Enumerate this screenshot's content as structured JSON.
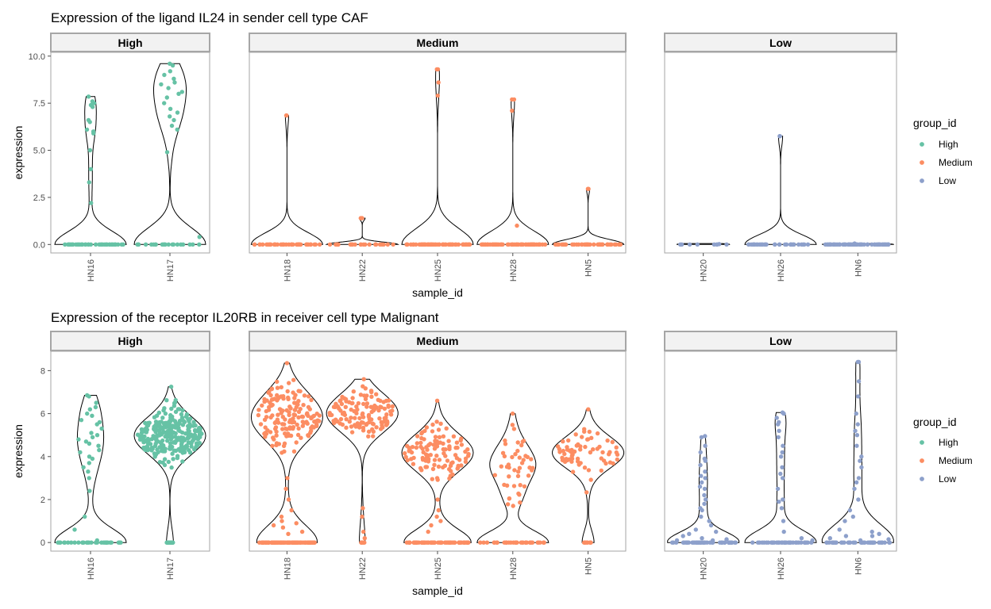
{
  "colors": {
    "High": "#66c2a5",
    "Medium": "#fc8d62",
    "Low": "#8da0cb"
  },
  "chart_data": [
    {
      "type": "violin",
      "title": "Expression of the ligand IL24 in sender cell type CAF",
      "xlabel": "sample_id",
      "ylabel": "expression",
      "ylim": [
        -0.45,
        10.2
      ],
      "yticks": [
        "0.0",
        "2.5",
        "5.0",
        "7.5",
        "10.0"
      ],
      "ytick_values": [
        0,
        2.5,
        5,
        7.5,
        10
      ],
      "facets": [
        {
          "strip": "High",
          "group": "High",
          "samples": [
            {
              "id": "HN16",
              "n_zero": 40,
              "max": 7.85,
              "upper": [
                6.5,
                7.5,
                6.0,
                6.6,
                7.4,
                5.9,
                7.6,
                6.1,
                4.0,
                3.3,
                2.2,
                5.0,
                7.3
              ]
            },
            {
              "id": "HN17",
              "n_zero": 22,
              "max": 9.6,
              "upper": [
                8.3,
                9.2,
                8.6,
                7.5,
                6.8,
                6.1,
                8.5,
                7.2,
                8.1,
                6.3,
                4.9,
                8.8,
                9.5,
                7.8,
                7.0,
                6.6,
                9.0,
                8.0,
                0.4
              ]
            }
          ]
        },
        {
          "strip": "Medium",
          "group": "Medium",
          "samples": [
            {
              "id": "HN18",
              "n_zero": 45,
              "max": 6.85,
              "upper": [
                6.85
              ]
            },
            {
              "id": "HN22",
              "n_zero": 25,
              "max": 1.4,
              "upper": [
                1.4
              ]
            },
            {
              "id": "HN25",
              "n_zero": 60,
              "max": 9.3,
              "upper": [
                9.3,
                8.6,
                7.9
              ]
            },
            {
              "id": "HN28",
              "n_zero": 60,
              "max": 7.7,
              "upper": [
                7.7,
                7.1,
                1.0
              ]
            },
            {
              "id": "HN5",
              "n_zero": 45,
              "max": 2.95,
              "upper": [
                2.95
              ]
            }
          ]
        },
        {
          "strip": "Low",
          "group": "Low",
          "samples": [
            {
              "id": "HN20",
              "n_zero": 8,
              "max": 0.02,
              "upper": []
            },
            {
              "id": "HN26",
              "n_zero": 35,
              "max": 5.75,
              "upper": [
                5.75
              ]
            },
            {
              "id": "HN6",
              "n_zero": 70,
              "max": 0.05,
              "upper": []
            }
          ]
        }
      ]
    },
    {
      "type": "violin",
      "title": "Expression of the receptor IL20RB in receiver cell type Malignant",
      "xlabel": "sample_id",
      "ylabel": "expression",
      "ylim": [
        -0.4,
        8.9
      ],
      "yticks": [
        "0",
        "2",
        "4",
        "6",
        "8"
      ],
      "ytick_values": [
        0,
        2,
        4,
        6,
        8
      ],
      "facets": [
        {
          "strip": "High",
          "group": "High",
          "samples": [
            {
              "id": "HN16",
              "n_zero": 30,
              "max": 6.85,
              "upper": [
                6.8,
                6.2,
                5.9,
                5.5,
                5.1,
                4.8,
                4.5,
                4.2,
                3.9,
                3.5,
                3.0,
                2.4,
                1.2,
                0.6,
                6.0,
                5.3,
                4.9,
                4.3,
                3.7,
                6.5,
                5.7,
                5.0,
                4.6,
                4.0,
                3.3,
                6.3,
                5.6,
                4.7,
                0.1
              ]
            },
            {
              "id": "HN17",
              "n_zero": 20,
              "max": 7.25,
              "dense": {
                "n": 280,
                "center": 5.0,
                "spread": 1.0,
                "min": 0.8
              }
            }
          ]
        },
        {
          "strip": "Medium",
          "group": "Medium",
          "samples": [
            {
              "id": "HN18",
              "n_zero": 90,
              "max": 8.35,
              "dense": {
                "n": 160,
                "center": 5.8,
                "spread": 1.2,
                "min": 0.2
              },
              "tail": [
                3.0,
                2.0,
                1.0,
                0.8,
                0.5,
                2.5,
                1.5,
                0.7,
                1.2,
                0.4,
                0.9
              ]
            },
            {
              "id": "HN22",
              "n_zero": 6,
              "max": 7.6,
              "dense": {
                "n": 130,
                "center": 6.1,
                "spread": 0.8,
                "min": 0.3
              },
              "tail": [
                1.6,
                1.2,
                0.5,
                0.2
              ]
            },
            {
              "id": "HN25",
              "n_zero": 70,
              "max": 6.6,
              "dense": {
                "n": 110,
                "center": 4.2,
                "spread": 1.1,
                "min": 0.2
              },
              "tail": [
                1.5,
                1.0,
                0.8,
                0.5,
                2.0,
                1.2
              ]
            },
            {
              "id": "HN28",
              "n_zero": 35,
              "max": 6.0,
              "dense": {
                "n": 45,
                "center": 3.6,
                "spread": 1.5,
                "min": 0.2
              }
            },
            {
              "id": "HN5",
              "n_zero": 8,
              "max": 6.2,
              "dense": {
                "n": 65,
                "center": 4.2,
                "spread": 1.0,
                "min": 0.1
              }
            }
          ]
        },
        {
          "strip": "Low",
          "group": "Low",
          "samples": [
            {
              "id": "HN20",
              "n_zero": 45,
              "max": 4.95,
              "upper": [
                4.9,
                4.5,
                4.2,
                3.9,
                3.6,
                3.3,
                3.0,
                2.8,
                2.5,
                2.2,
                2.0,
                1.8,
                1.5,
                1.2,
                1.0,
                0.8,
                0.6,
                0.4,
                0.3,
                0.2,
                3.8,
                3.1,
                2.6,
                1.6,
                0.5,
                0.1,
                0.15,
                0.1
              ]
            },
            {
              "id": "HN26",
              "n_zero": 35,
              "max": 6.05,
              "upper": [
                6.0,
                5.8,
                5.5,
                5.2,
                4.9,
                4.5,
                4.0,
                3.5,
                3.0,
                2.5,
                2.0,
                1.6,
                1.0,
                0.5,
                5.6,
                4.2,
                3.2,
                1.9,
                0.2,
                0.1
              ]
            },
            {
              "id": "HN6",
              "n_zero": 40,
              "max": 8.4,
              "upper": [
                8.4,
                7.5,
                6.8,
                6.0,
                5.5,
                5.0,
                4.5,
                4.0,
                3.5,
                3.0,
                2.5,
                2.0,
                1.5,
                1.0,
                0.5,
                5.2,
                3.8,
                2.8,
                1.2,
                0.6,
                0.4,
                0.3,
                0.2,
                0.15,
                0.1,
                0.3
              ]
            }
          ]
        }
      ]
    }
  ],
  "legend": {
    "title": "group_id",
    "items": [
      "High",
      "Medium",
      "Low"
    ]
  }
}
